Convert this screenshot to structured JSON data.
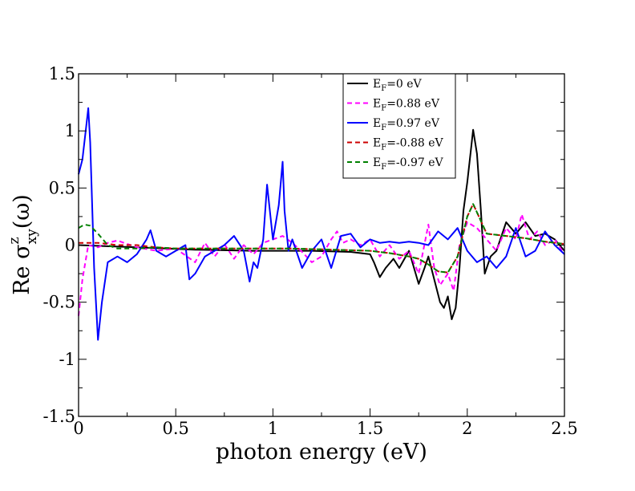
{
  "chart_data": {
    "type": "line",
    "title": "",
    "xlabel": "photon energy (eV)",
    "ylabel": {
      "prefix": "Re σ",
      "superscript": "z",
      "subscript": "xy",
      "suffix": "(ω)"
    },
    "xlim": [
      0,
      2.5
    ],
    "ylim": [
      -1.5,
      1.5
    ],
    "xticks": [
      0,
      0.5,
      1,
      1.5,
      2,
      2.5
    ],
    "xtick_labels": [
      "0",
      "0.5",
      "1",
      "1.5",
      "2",
      "2.5"
    ],
    "yticks": [
      -1.5,
      -1,
      -0.5,
      0,
      0.5,
      1,
      1.5
    ],
    "ytick_labels": [
      "-1.5",
      "-1",
      "-0.5",
      "0",
      "0.5",
      "1",
      "1.5"
    ],
    "grid": false,
    "legend_position": "top-right",
    "series": [
      {
        "name": "E_F=0 eV",
        "legend": {
          "base": "E",
          "sub": "F",
          "rest": "=0 eV"
        },
        "color": "#000000",
        "dash": "solid",
        "x": [
          0,
          0.3,
          0.6,
          0.9,
          1.2,
          1.4,
          1.5,
          1.52,
          1.55,
          1.58,
          1.62,
          1.65,
          1.7,
          1.75,
          1.78,
          1.8,
          1.83,
          1.86,
          1.88,
          1.9,
          1.92,
          1.94,
          1.96,
          1.98,
          2.0,
          2.02,
          2.03,
          2.05,
          2.07,
          2.09,
          2.12,
          2.15,
          2.2,
          2.25,
          2.3,
          2.35,
          2.4,
          2.45,
          2.5
        ],
        "y": [
          0,
          -0.02,
          -0.04,
          -0.05,
          -0.05,
          -0.06,
          -0.08,
          -0.15,
          -0.28,
          -0.2,
          -0.12,
          -0.2,
          -0.05,
          -0.34,
          -0.2,
          -0.1,
          -0.3,
          -0.5,
          -0.55,
          -0.45,
          -0.65,
          -0.55,
          -0.2,
          0.3,
          0.55,
          0.85,
          1.01,
          0.8,
          0.3,
          -0.25,
          -0.1,
          -0.05,
          0.2,
          0.1,
          0.2,
          0.08,
          0.1,
          0.05,
          -0.05
        ]
      },
      {
        "name": "E_F=0.88 eV",
        "legend": {
          "base": "E",
          "sub": "F",
          "rest": "=0.88 eV"
        },
        "color": "#ff00ff",
        "dash": "dashed",
        "x": [
          0,
          0.02,
          0.05,
          0.1,
          0.15,
          0.2,
          0.3,
          0.4,
          0.5,
          0.6,
          0.65,
          0.7,
          0.75,
          0.8,
          0.85,
          0.9,
          0.95,
          1.0,
          1.05,
          1.1,
          1.15,
          1.2,
          1.25,
          1.3,
          1.33,
          1.36,
          1.4,
          1.45,
          1.5,
          1.55,
          1.6,
          1.65,
          1.7,
          1.75,
          1.8,
          1.83,
          1.86,
          1.9,
          1.93,
          1.96,
          2.0,
          2.05,
          2.1,
          2.15,
          2.2,
          2.25,
          2.28,
          2.32,
          2.36,
          2.4,
          2.45,
          2.5
        ],
        "y": [
          -0.62,
          -0.3,
          0.0,
          -0.02,
          0.02,
          0.04,
          -0.02,
          -0.05,
          -0.03,
          -0.15,
          0.02,
          -0.1,
          0.01,
          -0.12,
          0.0,
          -0.08,
          0.02,
          0.05,
          0.08,
          0.02,
          -0.06,
          -0.15,
          -0.1,
          0.05,
          0.12,
          0.02,
          0.05,
          0.0,
          0.05,
          -0.1,
          0.0,
          -0.12,
          -0.05,
          -0.25,
          0.18,
          -0.2,
          -0.35,
          -0.25,
          -0.4,
          0.0,
          0.2,
          0.15,
          0.05,
          -0.05,
          0.15,
          0.05,
          0.27,
          0.05,
          0.12,
          0.0,
          0.05,
          -0.08
        ]
      },
      {
        "name": "E_F=0.97 eV",
        "legend": {
          "base": "E",
          "sub": "F",
          "rest": "=0.97 eV"
        },
        "color": "#0000ff",
        "dash": "solid",
        "x": [
          0,
          0.02,
          0.04,
          0.05,
          0.06,
          0.08,
          0.1,
          0.12,
          0.15,
          0.2,
          0.25,
          0.3,
          0.35,
          0.37,
          0.4,
          0.45,
          0.5,
          0.55,
          0.57,
          0.6,
          0.65,
          0.7,
          0.75,
          0.8,
          0.85,
          0.88,
          0.9,
          0.92,
          0.95,
          0.97,
          1.0,
          1.03,
          1.05,
          1.06,
          1.08,
          1.1,
          1.15,
          1.2,
          1.25,
          1.3,
          1.35,
          1.4,
          1.45,
          1.5,
          1.55,
          1.6,
          1.65,
          1.7,
          1.75,
          1.8,
          1.85,
          1.9,
          1.95,
          2.0,
          2.05,
          2.1,
          2.15,
          2.2,
          2.25,
          2.3,
          2.35,
          2.4,
          2.45,
          2.5
        ],
        "y": [
          0.62,
          0.75,
          1.05,
          1.2,
          0.9,
          -0.2,
          -0.83,
          -0.5,
          -0.15,
          -0.1,
          -0.15,
          -0.08,
          0.05,
          0.13,
          -0.05,
          -0.1,
          -0.05,
          0.0,
          -0.3,
          -0.25,
          -0.1,
          -0.05,
          0.0,
          0.08,
          -0.05,
          -0.32,
          -0.15,
          -0.2,
          0.05,
          0.53,
          0.05,
          0.35,
          0.73,
          0.3,
          -0.05,
          0.05,
          -0.2,
          -0.05,
          0.05,
          -0.2,
          0.08,
          0.1,
          -0.02,
          0.05,
          0.02,
          0.03,
          0.02,
          0.03,
          0.02,
          0.0,
          0.12,
          0.05,
          0.15,
          -0.05,
          -0.15,
          -0.1,
          -0.2,
          -0.1,
          0.15,
          -0.1,
          -0.05,
          0.12,
          0.0,
          -0.08
        ]
      },
      {
        "name": "E_F=-0.88 eV",
        "legend": {
          "base": "E",
          "sub": "F",
          "rest": "=-0.88 eV"
        },
        "color": "#cc0000",
        "dash": "dashed",
        "x": [
          0,
          0.1,
          0.2,
          0.3,
          0.4,
          0.5,
          0.7,
          0.9,
          1.1,
          1.3,
          1.5,
          1.6,
          1.7,
          1.75,
          1.8,
          1.85,
          1.9,
          1.95,
          2.0,
          2.03,
          2.06,
          2.1,
          2.2,
          2.3,
          2.4,
          2.5
        ],
        "y": [
          0.02,
          0.02,
          0.0,
          0.0,
          -0.02,
          -0.03,
          -0.03,
          -0.03,
          -0.03,
          -0.04,
          -0.05,
          -0.07,
          -0.1,
          -0.12,
          -0.17,
          -0.23,
          -0.24,
          -0.1,
          0.25,
          0.36,
          0.25,
          0.1,
          0.08,
          0.06,
          0.03,
          0.01
        ]
      },
      {
        "name": "E_F=-0.97 eV",
        "legend": {
          "base": "E",
          "sub": "F",
          "rest": "=-0.97 eV"
        },
        "color": "#008000",
        "dash": "dashed",
        "x": [
          0,
          0.03,
          0.06,
          0.1,
          0.15,
          0.2,
          0.3,
          0.4,
          0.5,
          0.7,
          0.9,
          1.1,
          1.3,
          1.5,
          1.6,
          1.7,
          1.75,
          1.8,
          1.85,
          1.9,
          1.95,
          2.0,
          2.03,
          2.06,
          2.1,
          2.2,
          2.3,
          2.4,
          2.5
        ],
        "y": [
          0.15,
          0.18,
          0.17,
          0.1,
          0.0,
          -0.03,
          -0.03,
          -0.02,
          -0.03,
          -0.03,
          -0.03,
          -0.03,
          -0.04,
          -0.05,
          -0.07,
          -0.1,
          -0.12,
          -0.17,
          -0.23,
          -0.24,
          -0.1,
          0.25,
          0.36,
          0.25,
          0.1,
          0.08,
          0.06,
          0.03,
          0.01
        ]
      }
    ]
  }
}
